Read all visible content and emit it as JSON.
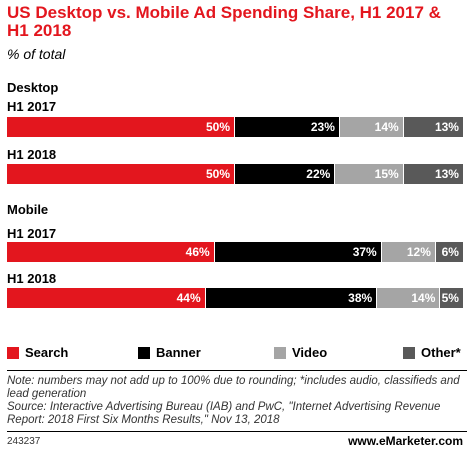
{
  "chart_data": {
    "type": "bar",
    "stacked": true,
    "orientation": "horizontal",
    "title": "US Desktop vs. Mobile Ad Spending Share, H1 2017 & H1 2018",
    "subtitle": "% of total",
    "colors": {
      "Search": "#e3161e",
      "Banner": "#000000",
      "Video": "#a5a5a5",
      "Other*": "#595959"
    },
    "groups": [
      {
        "name": "Desktop",
        "rows": [
          {
            "label": "H1 2017",
            "values": [
              50,
              23,
              14,
              13
            ],
            "value_labels": [
              "50%",
              "23%",
              "14%",
              "13%"
            ]
          },
          {
            "label": "H1 2018",
            "values": [
              50,
              22,
              15,
              13
            ],
            "value_labels": [
              "50%",
              "22%",
              "15%",
              "13%"
            ]
          }
        ]
      },
      {
        "name": "Mobile",
        "rows": [
          {
            "label": "H1 2017",
            "values": [
              46,
              37,
              12,
              6
            ],
            "value_labels": [
              "46%",
              "37%",
              "12%",
              "6%"
            ]
          },
          {
            "label": "H1 2018",
            "values": [
              44,
              38,
              14,
              5
            ],
            "value_labels": [
              "44%",
              "38%",
              "14%",
              "5%"
            ]
          }
        ]
      }
    ],
    "legend": [
      "Search",
      "Banner",
      "Video",
      "Other*"
    ],
    "legend_position": "bottom"
  },
  "footer": {
    "note": "Note: numbers may not add up to 100% due to rounding; *includes audio, classifieds and lead generation",
    "source": "Source: Interactive Advertising Bureau (IAB) and PwC, \"Internet Advertising Revenue Report: 2018 First Six Months Results,\" Nov 13, 2018",
    "chart_id": "243237",
    "brand": "www.eMarketer.com"
  }
}
